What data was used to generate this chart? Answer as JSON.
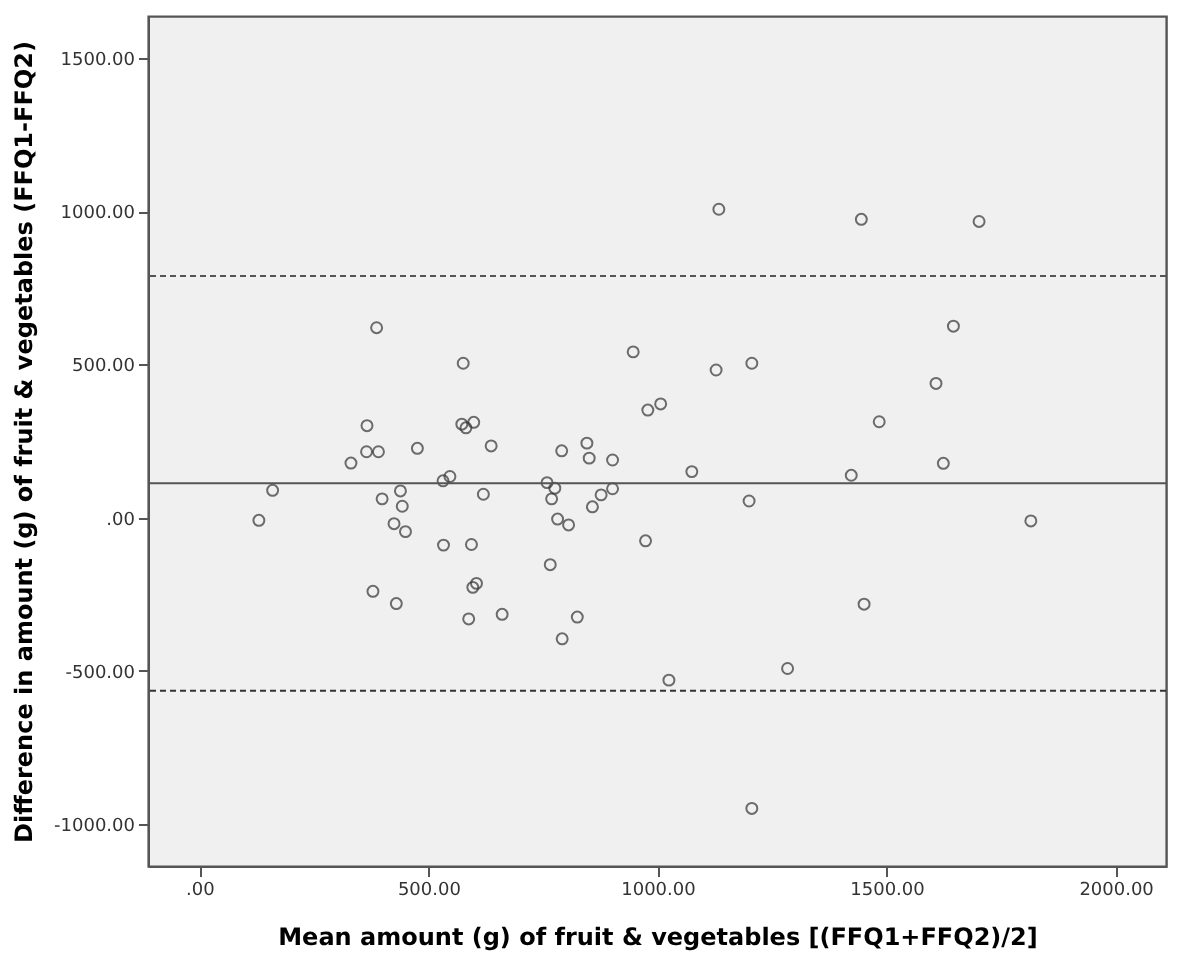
{
  "chart_data": {
    "type": "scatter",
    "xlabel": "Mean amount (g) of fruit & vegetables [(FFQ1+FFQ2)/2]",
    "ylabel": "Difference in amount (g) of fruit & vegetables (FFQ1-FFQ2)",
    "x": [
      130,
      160,
      331,
      366,
      365,
      391,
      387,
      399,
      439,
      443,
      425,
      450,
      379,
      430,
      476,
      532,
      547,
      573,
      582,
      599,
      576,
      637,
      620,
      533,
      594,
      597,
      605,
      588,
      661,
      759,
      776,
      769,
      782,
      806,
      766,
      792,
      825,
      791,
      846,
      851,
      858,
      877,
      902,
      902,
      947,
      979,
      1007,
      974,
      1025,
      1075,
      1128,
      1134,
      1200,
      1206,
      1206,
      1284,
      1423,
      1445,
      1451,
      1484,
      1608,
      1624,
      1646,
      1702,
      1815
    ],
    "series": [
      {
        "color": "#333333",
        "values": [
          -9,
          89,
          178,
          300,
          215,
          215,
          620,
          61,
          87,
          37,
          -20,
          -46,
          -241,
          -281,
          226,
          120,
          134,
          305,
          293,
          311,
          504,
          234,
          76,
          -90,
          -88,
          -228,
          -215,
          -331,
          -316,
          114,
          96,
          61,
          -5,
          -24,
          -154,
          -396,
          -325,
          218,
          243,
          194,
          35,
          74,
          94,
          188,
          541,
          351,
          371,
          -76,
          -531,
          150,
          482,
          1007,
          54,
          504,
          -950,
          -493,
          138,
          974,
          -283,
          313,
          438,
          177,
          625,
          967,
          -11
        ]
      }
    ],
    "marker": "circle",
    "xlim": [
      -112,
      2110
    ],
    "ylim": [
      -1138,
      1638
    ],
    "xticks": [
      {
        "value": 0,
        "label": ".00"
      },
      {
        "value": 500,
        "label": "500.00"
      },
      {
        "value": 1000,
        "label": "1000.00"
      },
      {
        "value": 1500,
        "label": "1500.00"
      },
      {
        "value": 2000,
        "label": "2000.00"
      }
    ],
    "yticks": [
      {
        "value": -1000,
        "label": "-1000.00"
      },
      {
        "value": -500,
        "label": "-500.00"
      },
      {
        "value": 0,
        "label": ".00"
      },
      {
        "value": 500,
        "label": "500.00"
      },
      {
        "value": 1000,
        "label": "1000.00"
      },
      {
        "value": 1500,
        "label": "1500.00"
      }
    ],
    "ref_lines": [
      {
        "axis": "y",
        "value": 112,
        "color": "#555555",
        "line_style": "solid"
      },
      {
        "axis": "y",
        "value": 789,
        "color": "#555555",
        "line_style": "dashed"
      },
      {
        "axis": "y",
        "value": -566,
        "color": "#333333",
        "line_style": "dashed"
      }
    ],
    "grid": false
  }
}
